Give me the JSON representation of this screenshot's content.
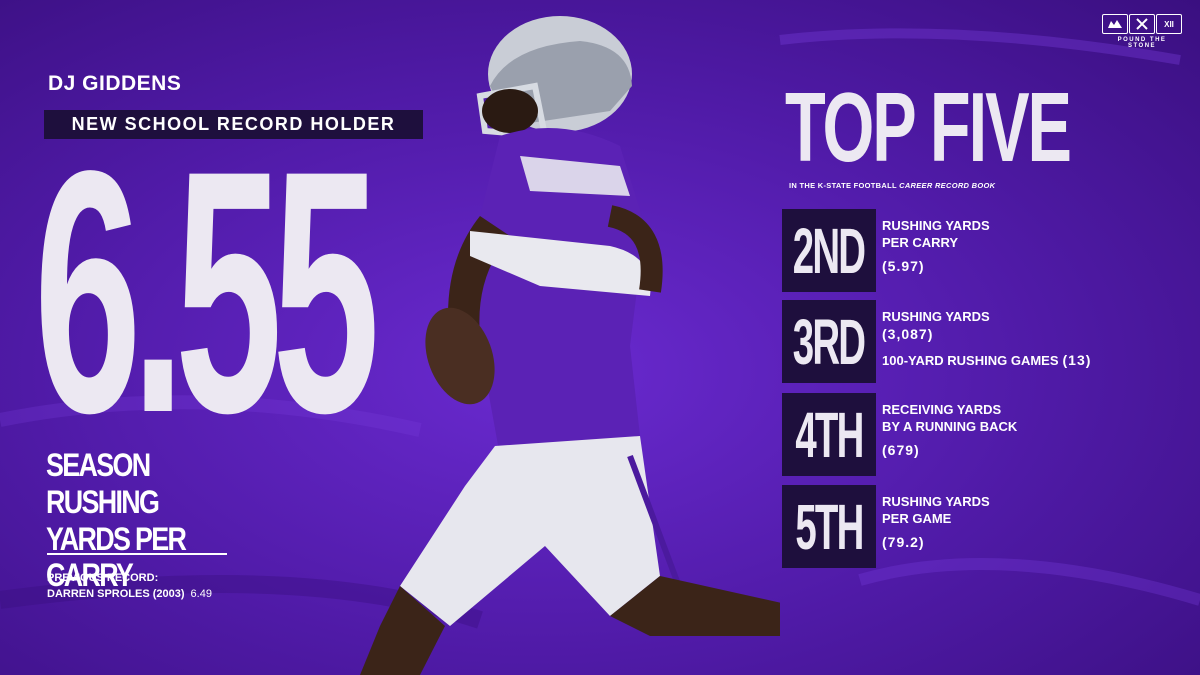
{
  "logo": {
    "tagline": "POUND THE STONE"
  },
  "player": {
    "name": "DJ GIDDENS"
  },
  "headline": {
    "badge": "NEW SCHOOL RECORD HOLDER",
    "stat": "6.55",
    "stat_label_line1": "SEASON RUSHING",
    "stat_label_line2": "YARDS PER CARRY"
  },
  "previous_record": {
    "label": "PREVIOUS RECORD:",
    "holder": "DARREN SPROLES (2003)",
    "value": "6.49"
  },
  "top_five": {
    "title": "TOP FIVE",
    "subtitle_prefix": "IN THE K-STATE FOOTBALL ",
    "subtitle_bold": "CAREER RECORD BOOK",
    "ranks": [
      {
        "rank": "2ND",
        "line1": "RUSHING YARDS",
        "line2": "PER CARRY",
        "value": "(5.97)"
      },
      {
        "rank": "3RD",
        "line1": "RUSHING YARDS",
        "line2": "(3,087)",
        "line3": "100-YARD RUSHING GAMES",
        "value": "(13)"
      },
      {
        "rank": "4TH",
        "line1": "RECEIVING YARDS",
        "line2": "BY A RUNNING BACK",
        "value": "(679)"
      },
      {
        "rank": "5TH",
        "line1": "RUSHING YARDS",
        "line2": "PER GAME",
        "value": "(79.2)"
      }
    ]
  },
  "colors": {
    "background": "#5a1fb8",
    "dark_box": "#1e0f3d",
    "text": "#ece8f2"
  }
}
